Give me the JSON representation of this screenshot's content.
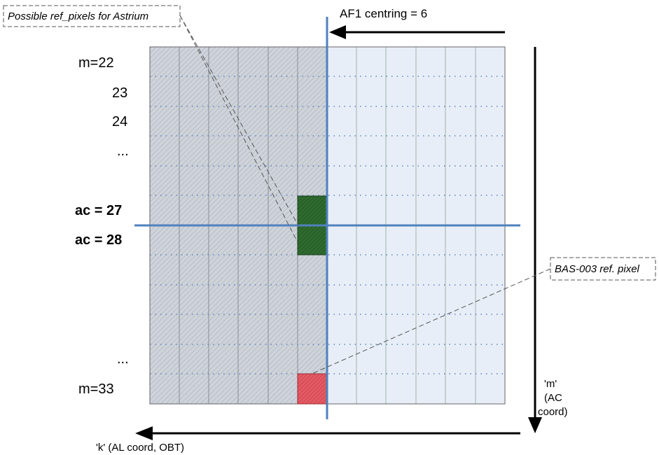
{
  "callouts": {
    "astrium": "Possible ref_pixels for Astrium",
    "bas": "BAS-003 ref. pixel"
  },
  "centring_label": "AF1 centring = 6",
  "row_labels": {
    "m22": "m=22",
    "r23": "23",
    "r24": "24",
    "ellipsis_top": "...",
    "ac27": "ac = 27",
    "ac28": "ac = 28",
    "ellipsis_bottom": "...",
    "m33": "m=33"
  },
  "axes": {
    "m_axis": [
      "'m'",
      "(AC",
      "coord)"
    ],
    "k_axis": "'k' (AL coord, OBT)"
  },
  "colors": {
    "grid_hatched": "#c9ced6",
    "grid_light": "#e8eef6",
    "blue_line": "#4f81bd",
    "highlight_green": "#2e6b2e",
    "highlight_red": "#e05560"
  }
}
